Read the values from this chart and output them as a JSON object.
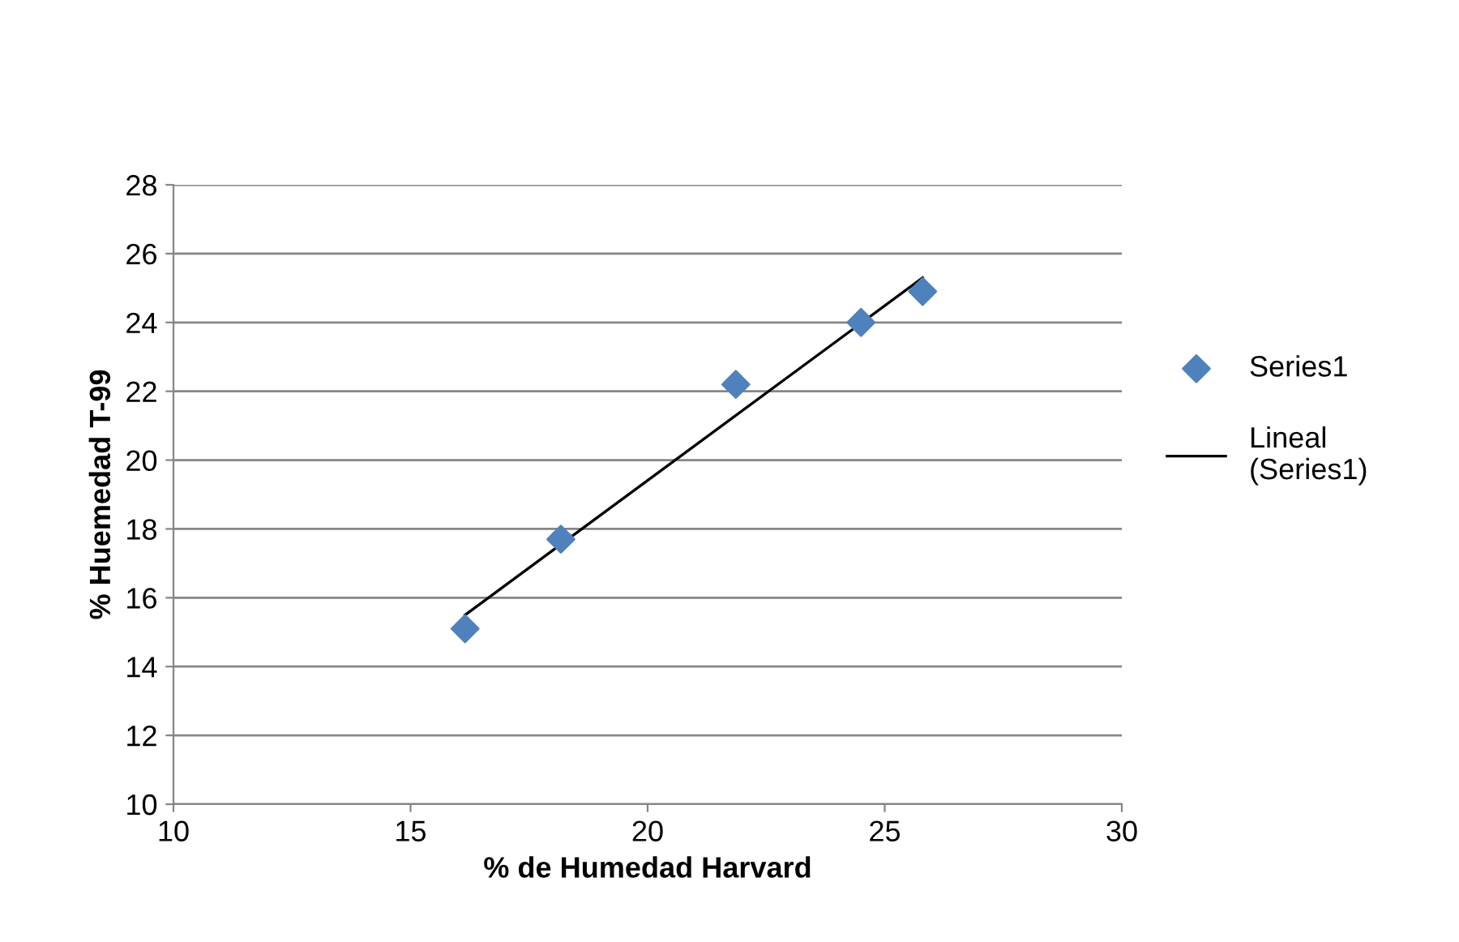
{
  "chart_data": {
    "type": "scatter",
    "xlabel": "% de Humedad Harvard",
    "ylabel": "% Huemedad T-99",
    "series": [
      {
        "name": "Series1",
        "color": "#4f81bd",
        "marker": "diamond",
        "x": [
          16.15,
          18.17,
          21.86,
          24.5,
          25.8
        ],
        "values": [
          15.1,
          17.7,
          22.2,
          24.0,
          24.9
        ]
      },
      {
        "name": "Lineal (Series1)",
        "type": "line",
        "color": "#000000",
        "marker": "none",
        "line_style": "solid",
        "x": [
          16.15,
          25.8
        ],
        "values": [
          15.5,
          25.3
        ]
      }
    ],
    "xlim": [
      10,
      30
    ],
    "xticks": [
      10,
      15,
      20,
      25,
      30
    ],
    "ylim": [
      10,
      28
    ],
    "yticks": [
      10,
      12,
      14,
      16,
      18,
      20,
      22,
      24,
      26,
      28
    ],
    "grid": "y",
    "legend": "right"
  }
}
